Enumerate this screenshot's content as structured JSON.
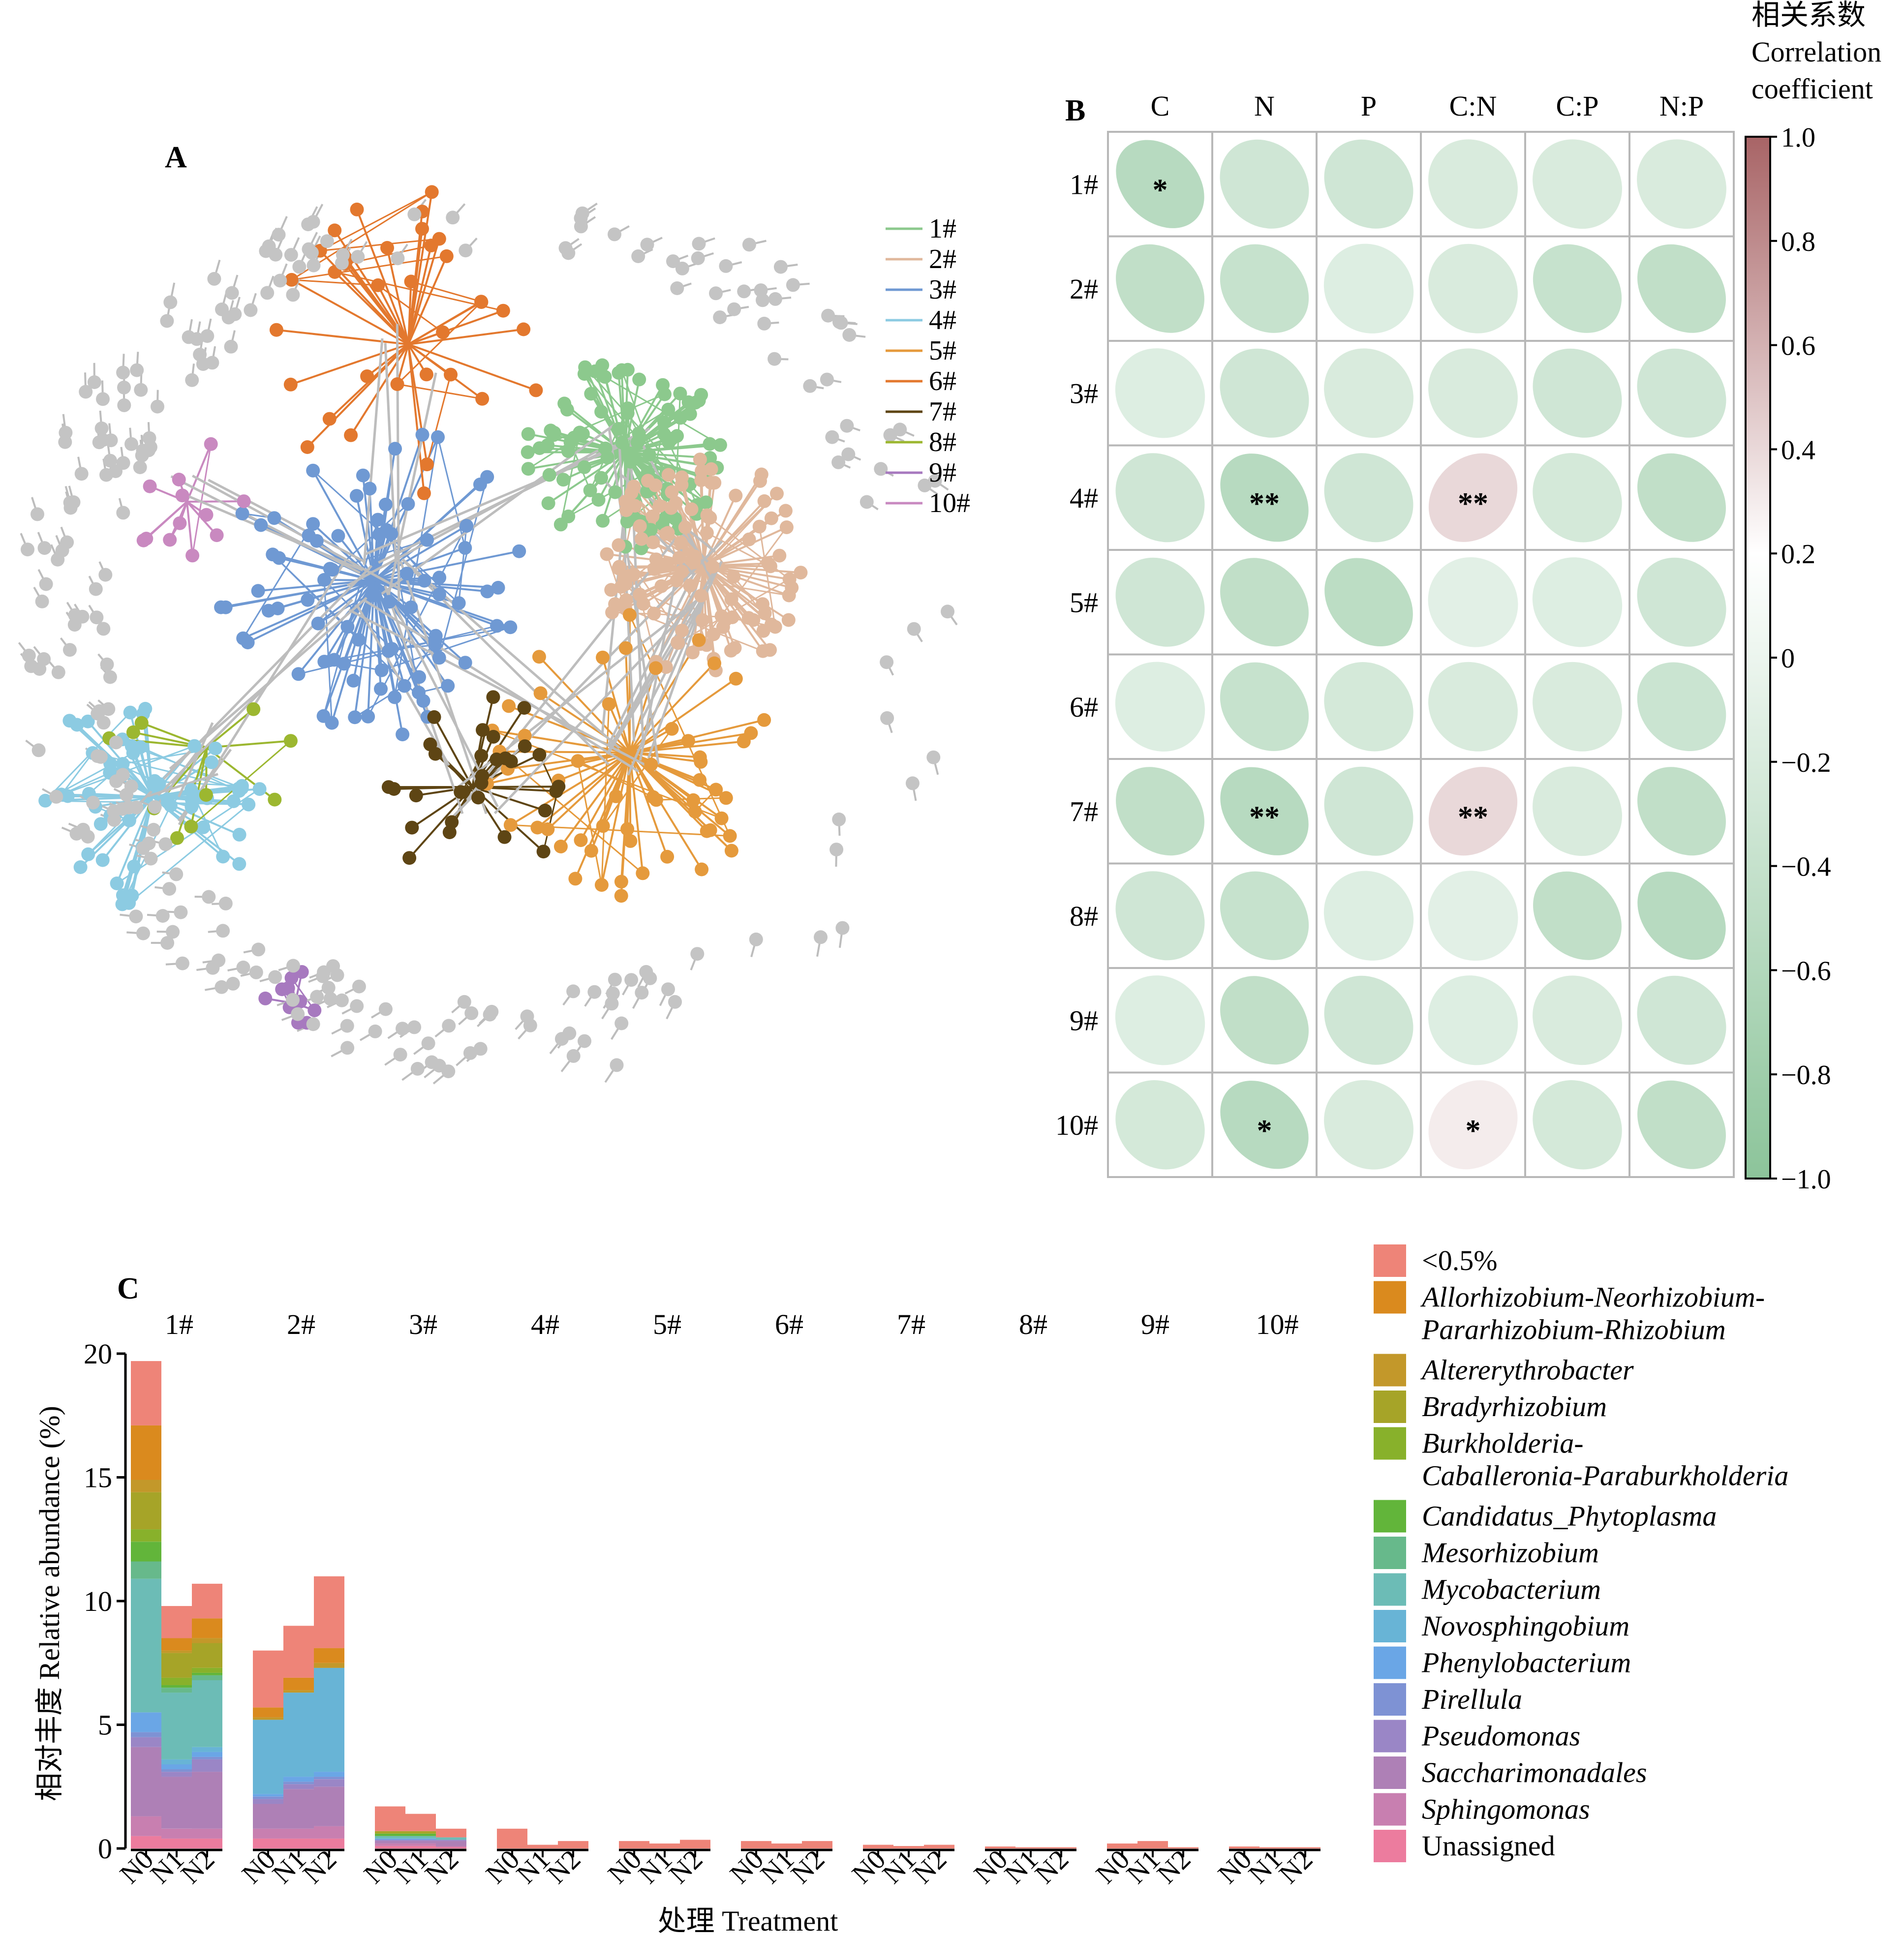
{
  "panel_a": {
    "label": "A",
    "legend": [
      {
        "label": "1#",
        "color": "#8cc98d"
      },
      {
        "label": "2#",
        "color": "#e0b89c"
      },
      {
        "label": "3#",
        "color": "#6f99d3"
      },
      {
        "label": "4#",
        "color": "#8ccbe2"
      },
      {
        "label": "5#",
        "color": "#e59a3c"
      },
      {
        "label": "6#",
        "color": "#e3782e"
      },
      {
        "label": "7#",
        "color": "#5e4514"
      },
      {
        "label": "8#",
        "color": "#9cb730"
      },
      {
        "label": "9#",
        "color": "#a779bf"
      },
      {
        "label": "10#",
        "color": "#c989c0"
      }
    ],
    "node_color_unassigned": "#c4c4c4",
    "edge_color_unassigned": "#bdbdbd"
  },
  "panel_b": {
    "label": "B",
    "colorbar_title": [
      "相关系数",
      "Correlation",
      "coefficient"
    ],
    "colorbar_ticks": [
      "1.0",
      "0.8",
      "0.6",
      "0.4",
      "0.2",
      "0",
      "−0.2",
      "−0.4",
      "−0.6",
      "−0.8",
      "−1.0"
    ],
    "color_low": "#8cc49a",
    "color_mid": "#ffffff",
    "color_high": "#a86466"
  },
  "panel_c": {
    "label": "C",
    "ylabel": "相对丰度 Relative abundance (%)",
    "xlabel": "处理 Treatment",
    "yticks": [
      "20",
      "15",
      "10",
      "5",
      "0"
    ],
    "legend": [
      {
        "label": "<0.5%",
        "color": "#ee8478",
        "italic": false
      },
      {
        "label": "Allorhizobium-Neorhizobium-Pararhizobium-Rhizobium",
        "lines": [
          "Allorhizobium-Neorhizobium-",
          "Pararhizobium-Rhizobium"
        ],
        "color": "#da8a1e",
        "italic": true
      },
      {
        "label": "Altererythrobacter",
        "color": "#c3982a",
        "italic": true
      },
      {
        "label": "Bradyrhizobium",
        "color": "#a6a428",
        "italic": true
      },
      {
        "label": "Burkholderia-Caballeronia-Paraburkholderia",
        "lines": [
          "Burkholderia-",
          "Caballeronia-Paraburkholderia"
        ],
        "color": "#88b12b",
        "italic": true
      },
      {
        "label": "Candidatus_Phytoplasma",
        "color": "#62b53a",
        "italic": true
      },
      {
        "label": "Mesorhizobium",
        "color": "#67b98b",
        "italic": true
      },
      {
        "label": "Mycobacterium",
        "color": "#6cbcb6",
        "italic": true
      },
      {
        "label": "Novosphingobium",
        "color": "#68b4d6",
        "italic": true
      },
      {
        "label": "Phenylobacterium",
        "color": "#6aa6e6",
        "italic": true
      },
      {
        "label": "Pirellula",
        "color": "#7e92d4",
        "italic": true
      },
      {
        "label": "Pseudomonas",
        "color": "#9a86c6",
        "italic": true
      },
      {
        "label": "Saccharimonadales",
        "color": "#ae80b6",
        "italic": true
      },
      {
        "label": "Sphingomonas",
        "color": "#c87fb0",
        "italic": true
      },
      {
        "label": "Unassigned",
        "color": "#ec7c9e",
        "italic": false
      }
    ]
  },
  "chart_data": [
    {
      "type": "heatmap",
      "panel": "B",
      "columns": [
        "C",
        "N",
        "P",
        "C:N",
        "C:P",
        "N:P"
      ],
      "rows": [
        "1#",
        "2#",
        "3#",
        "4#",
        "5#",
        "6#",
        "7#",
        "8#",
        "9#",
        "10#"
      ],
      "values": [
        [
          -0.55,
          -0.3,
          -0.3,
          -0.2,
          -0.2,
          -0.2
        ],
        [
          -0.45,
          -0.4,
          -0.15,
          -0.2,
          -0.4,
          -0.45
        ],
        [
          -0.15,
          -0.3,
          -0.2,
          -0.2,
          -0.3,
          -0.3
        ],
        [
          -0.3,
          -0.55,
          -0.3,
          0.4,
          -0.25,
          -0.45
        ],
        [
          -0.3,
          -0.45,
          -0.5,
          -0.1,
          -0.15,
          -0.3
        ],
        [
          -0.15,
          -0.4,
          -0.25,
          -0.2,
          -0.2,
          -0.35
        ],
        [
          -0.45,
          -0.55,
          -0.3,
          0.4,
          -0.2,
          -0.45
        ],
        [
          -0.3,
          -0.4,
          -0.15,
          -0.1,
          -0.45,
          -0.55
        ],
        [
          -0.15,
          -0.45,
          -0.3,
          -0.15,
          -0.2,
          -0.3
        ],
        [
          -0.25,
          -0.55,
          -0.2,
          0.3,
          -0.25,
          -0.45
        ]
      ],
      "significance": [
        [
          "*",
          "",
          "",
          "",
          "",
          ""
        ],
        [
          "",
          "",
          "",
          "",
          "",
          ""
        ],
        [
          "",
          "",
          "",
          "",
          "",
          ""
        ],
        [
          "",
          "**",
          "",
          "**",
          "",
          ""
        ],
        [
          "",
          "",
          "",
          "",
          "",
          ""
        ],
        [
          "",
          "",
          "",
          "",
          "",
          ""
        ],
        [
          "",
          "**",
          "",
          "**",
          "",
          ""
        ],
        [
          "",
          "",
          "",
          "",
          "",
          ""
        ],
        [
          "",
          "",
          "",
          "",
          "",
          ""
        ],
        [
          "",
          "*",
          "",
          "*",
          "",
          ""
        ]
      ],
      "range": [
        -1.0,
        1.0
      ]
    },
    {
      "type": "bar",
      "stacked": true,
      "panel": "C",
      "modules": [
        "1#",
        "2#",
        "3#",
        "4#",
        "5#",
        "6#",
        "7#",
        "8#",
        "9#",
        "10#"
      ],
      "treatments": [
        "N0",
        "N1",
        "N2"
      ],
      "ylim": [
        0,
        20
      ],
      "stack_order": [
        "Unassigned",
        "Sphingomonas",
        "Saccharimonadales",
        "Pseudomonas",
        "Pirellula",
        "Phenylobacterium",
        "Novosphingobium",
        "Mycobacterium",
        "Mesorhizobium",
        "Candidatus_Phytoplasma",
        "Burkholderia-Caballeronia-Paraburkholderia",
        "Bradyrhizobium",
        "Altererythrobacter",
        "Allorhizobium-Neorhizobium-Pararhizobium-Rhizobium",
        "<0.5%"
      ],
      "bars": [
        {
          "module": "1#",
          "treatment": "N0",
          "segments": [
            0.5,
            0.8,
            2.8,
            0.4,
            0.2,
            0.8,
            0,
            5.4,
            0.7,
            0.8,
            0.5,
            1.5,
            0.5,
            2.2,
            2.6
          ]
        },
        {
          "module": "1#",
          "treatment": "N1",
          "segments": [
            0.4,
            0.4,
            2.1,
            0.2,
            0.1,
            0.2,
            0.2,
            2.7,
            0.2,
            0.1,
            0.3,
            1.0,
            0.1,
            0.5,
            1.3
          ]
        },
        {
          "module": "1#",
          "treatment": "N2",
          "segments": [
            0.4,
            0.4,
            2.3,
            0.5,
            0.1,
            0.2,
            0.2,
            2.7,
            0.2,
            0.1,
            0.2,
            1.0,
            0.2,
            0.8,
            1.4
          ]
        },
        {
          "module": "2#",
          "treatment": "N0",
          "segments": [
            0.4,
            0.4,
            1.0,
            0.2,
            0.1,
            0.1,
            3.0,
            0,
            0,
            0,
            0,
            0,
            0.1,
            0.4,
            2.3
          ]
        },
        {
          "module": "2#",
          "treatment": "N1",
          "segments": [
            0.4,
            0.4,
            1.6,
            0.2,
            0.1,
            0.2,
            3.4,
            0,
            0,
            0,
            0,
            0,
            0.1,
            0.5,
            2.1
          ]
        },
        {
          "module": "2#",
          "treatment": "N2",
          "segments": [
            0.4,
            0.5,
            1.6,
            0.3,
            0.1,
            0.2,
            4.2,
            0,
            0,
            0,
            0,
            0,
            0.2,
            0.6,
            2.9
          ]
        },
        {
          "module": "3#",
          "treatment": "N0",
          "segments": [
            0.1,
            0.1,
            0.1,
            0.05,
            0,
            0.05,
            0,
            0.1,
            0,
            0.1,
            0,
            0.1,
            0,
            0,
            1.0
          ]
        },
        {
          "module": "3#",
          "treatment": "N1",
          "segments": [
            0.1,
            0.1,
            0.1,
            0.05,
            0,
            0.05,
            0,
            0.1,
            0,
            0.1,
            0,
            0.1,
            0,
            0,
            0.7
          ]
        },
        {
          "module": "3#",
          "treatment": "N2",
          "segments": [
            0.05,
            0.05,
            0.2,
            0.05,
            0,
            0,
            0,
            0.1,
            0,
            0,
            0,
            0,
            0,
            0,
            0.35
          ]
        },
        {
          "module": "4#",
          "treatment": "N0",
          "segments": [
            0,
            0,
            0,
            0,
            0,
            0,
            0,
            0,
            0,
            0,
            0,
            0,
            0,
            0,
            0.8
          ]
        },
        {
          "module": "4#",
          "treatment": "N1",
          "segments": [
            0,
            0,
            0,
            0,
            0,
            0,
            0,
            0,
            0,
            0,
            0,
            0,
            0,
            0,
            0.15
          ]
        },
        {
          "module": "4#",
          "treatment": "N2",
          "segments": [
            0,
            0,
            0,
            0,
            0,
            0,
            0,
            0,
            0,
            0,
            0,
            0,
            0,
            0,
            0.3
          ]
        },
        {
          "module": "5#",
          "treatment": "N0",
          "segments": [
            0,
            0,
            0,
            0,
            0,
            0,
            0,
            0,
            0,
            0,
            0,
            0,
            0,
            0,
            0.3
          ]
        },
        {
          "module": "5#",
          "treatment": "N1",
          "segments": [
            0,
            0,
            0,
            0,
            0,
            0,
            0,
            0,
            0,
            0,
            0,
            0,
            0,
            0,
            0.2
          ]
        },
        {
          "module": "5#",
          "treatment": "N2",
          "segments": [
            0,
            0,
            0,
            0,
            0,
            0,
            0,
            0,
            0,
            0,
            0,
            0,
            0,
            0,
            0.35
          ]
        },
        {
          "module": "6#",
          "treatment": "N0",
          "segments": [
            0,
            0,
            0,
            0,
            0,
            0,
            0,
            0,
            0,
            0,
            0,
            0,
            0,
            0,
            0.3
          ]
        },
        {
          "module": "6#",
          "treatment": "N1",
          "segments": [
            0,
            0,
            0,
            0,
            0,
            0,
            0,
            0,
            0,
            0,
            0,
            0,
            0,
            0,
            0.2
          ]
        },
        {
          "module": "6#",
          "treatment": "N2",
          "segments": [
            0,
            0,
            0,
            0,
            0,
            0,
            0,
            0,
            0,
            0,
            0,
            0,
            0,
            0,
            0.3
          ]
        },
        {
          "module": "7#",
          "treatment": "N0",
          "segments": [
            0,
            0,
            0,
            0,
            0,
            0,
            0,
            0,
            0,
            0,
            0,
            0,
            0,
            0,
            0.15
          ]
        },
        {
          "module": "7#",
          "treatment": "N1",
          "segments": [
            0,
            0,
            0,
            0,
            0,
            0,
            0,
            0,
            0,
            0,
            0,
            0,
            0,
            0,
            0.1
          ]
        },
        {
          "module": "7#",
          "treatment": "N2",
          "segments": [
            0,
            0,
            0,
            0,
            0,
            0,
            0,
            0,
            0,
            0,
            0,
            0,
            0,
            0,
            0.15
          ]
        },
        {
          "module": "8#",
          "treatment": "N0",
          "segments": [
            0,
            0,
            0,
            0,
            0,
            0,
            0,
            0,
            0,
            0,
            0,
            0,
            0,
            0,
            0.08
          ]
        },
        {
          "module": "8#",
          "treatment": "N1",
          "segments": [
            0,
            0,
            0,
            0,
            0,
            0,
            0,
            0,
            0,
            0,
            0,
            0,
            0,
            0,
            0.05
          ]
        },
        {
          "module": "8#",
          "treatment": "N2",
          "segments": [
            0,
            0,
            0,
            0,
            0,
            0,
            0,
            0,
            0,
            0,
            0,
            0,
            0,
            0,
            0.05
          ]
        },
        {
          "module": "9#",
          "treatment": "N0",
          "segments": [
            0,
            0,
            0,
            0,
            0,
            0,
            0,
            0,
            0,
            0,
            0,
            0,
            0,
            0,
            0.2
          ]
        },
        {
          "module": "9#",
          "treatment": "N1",
          "segments": [
            0,
            0,
            0,
            0,
            0,
            0,
            0,
            0,
            0,
            0,
            0,
            0,
            0,
            0,
            0.3
          ]
        },
        {
          "module": "9#",
          "treatment": "N2",
          "segments": [
            0,
            0,
            0,
            0,
            0,
            0,
            0,
            0,
            0,
            0,
            0,
            0,
            0,
            0,
            0.05
          ]
        },
        {
          "module": "10#",
          "treatment": "N0",
          "segments": [
            0,
            0,
            0,
            0,
            0,
            0,
            0,
            0,
            0,
            0,
            0,
            0,
            0,
            0,
            0.08
          ]
        },
        {
          "module": "10#",
          "treatment": "N1",
          "segments": [
            0,
            0,
            0,
            0,
            0,
            0,
            0,
            0,
            0,
            0,
            0,
            0,
            0,
            0,
            0.05
          ]
        },
        {
          "module": "10#",
          "treatment": "N2",
          "segments": [
            0,
            0,
            0,
            0,
            0,
            0,
            0,
            0,
            0,
            0,
            0,
            0,
            0,
            0,
            0.05
          ]
        }
      ]
    }
  ]
}
